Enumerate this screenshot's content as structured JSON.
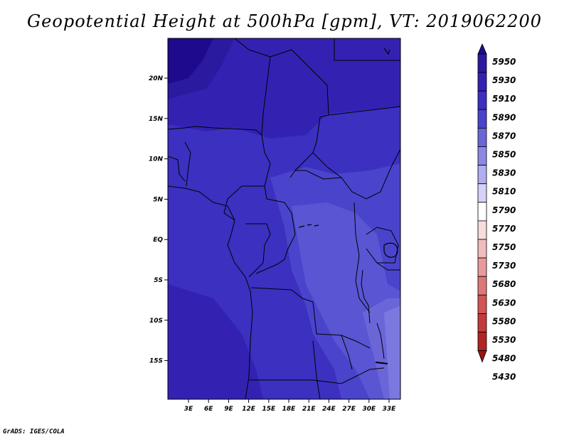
{
  "title": "Geopotential Height at 500hPa [gpm], VT: 2019062200",
  "credit": "GrADS: IGES/COLA",
  "map": {
    "lat_ticks": [
      "20N",
      "15N",
      "10N",
      "5N",
      "EQ",
      "5S",
      "10S",
      "15S"
    ],
    "lon_ticks": [
      "3E",
      "6E",
      "9E",
      "12E",
      "15E",
      "18E",
      "21E",
      "24E",
      "27E",
      "30E",
      "33E"
    ]
  },
  "colorbar": {
    "levels": [
      "5950",
      "5930",
      "5910",
      "5890",
      "5870",
      "5850",
      "5830",
      "5810",
      "5790",
      "5770",
      "5750",
      "5730",
      "5680",
      "5630",
      "5580",
      "5530",
      "5480",
      "5430"
    ],
    "colors": [
      "#1d0a8c",
      "#2a1aa0",
      "#3322b2",
      "#3b30c0",
      "#4a44cc",
      "#6a66d8",
      "#8c88e4",
      "#b0aeee",
      "#d4d2f8",
      "#ffffff",
      "#f8dcdc",
      "#f0bcbc",
      "#e89a9a",
      "#de7878",
      "#d25656",
      "#c43a3a",
      "#b22424",
      "#9a1414"
    ]
  },
  "chart_data": {
    "type": "heatmap",
    "title": "Geopotential Height at 500hPa [gpm], VT: 2019062200",
    "variable_units": "gpm",
    "contour_levels": [
      5430,
      5480,
      5530,
      5580,
      5630,
      5680,
      5730,
      5750,
      5770,
      5790,
      5810,
      5830,
      5850,
      5870,
      5890,
      5910,
      5930,
      5950
    ],
    "x_ticks": [
      "3E",
      "6E",
      "9E",
      "12E",
      "15E",
      "18E",
      "21E",
      "24E",
      "27E",
      "30E",
      "33E"
    ],
    "y_ticks": [
      "20N",
      "15N",
      "10N",
      "5N",
      "EQ",
      "5S",
      "10S",
      "15S"
    ]
  }
}
